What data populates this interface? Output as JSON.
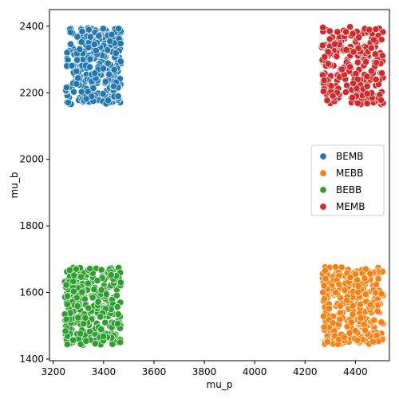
{
  "chart_data": {
    "type": "scatter",
    "xlabel": "mu_p",
    "ylabel": "mu_b",
    "xlim": [
      3185,
      4535
    ],
    "ylim": [
      1395,
      2450
    ],
    "xticks": [
      3200,
      3400,
      3600,
      3800,
      4000,
      4200,
      4400
    ],
    "yticks": [
      1400,
      1600,
      1800,
      2000,
      2200,
      2400
    ],
    "grid": false,
    "legend_position": "right",
    "series": [
      {
        "name": "BEMB",
        "color": "#1f77b4",
        "points_per_cluster": 300,
        "x_range": [
          3250,
          3470
        ],
        "y_range": [
          2165,
          2395
        ],
        "seed": 11
      },
      {
        "name": "MEBB",
        "color": "#ff7f0e",
        "points_per_cluster": 300,
        "x_range": [
          4270,
          4510
        ],
        "y_range": [
          1443,
          1677
        ],
        "seed": 23
      },
      {
        "name": "BEBB",
        "color": "#2ca02c",
        "points_per_cluster": 300,
        "x_range": [
          3243,
          3472
        ],
        "y_range": [
          1442,
          1676
        ],
        "seed": 37
      },
      {
        "name": "MEMB",
        "color": "#d62728",
        "points_per_cluster": 300,
        "x_range": [
          4265,
          4510
        ],
        "y_range": [
          2163,
          2398
        ],
        "seed": 53
      }
    ]
  }
}
